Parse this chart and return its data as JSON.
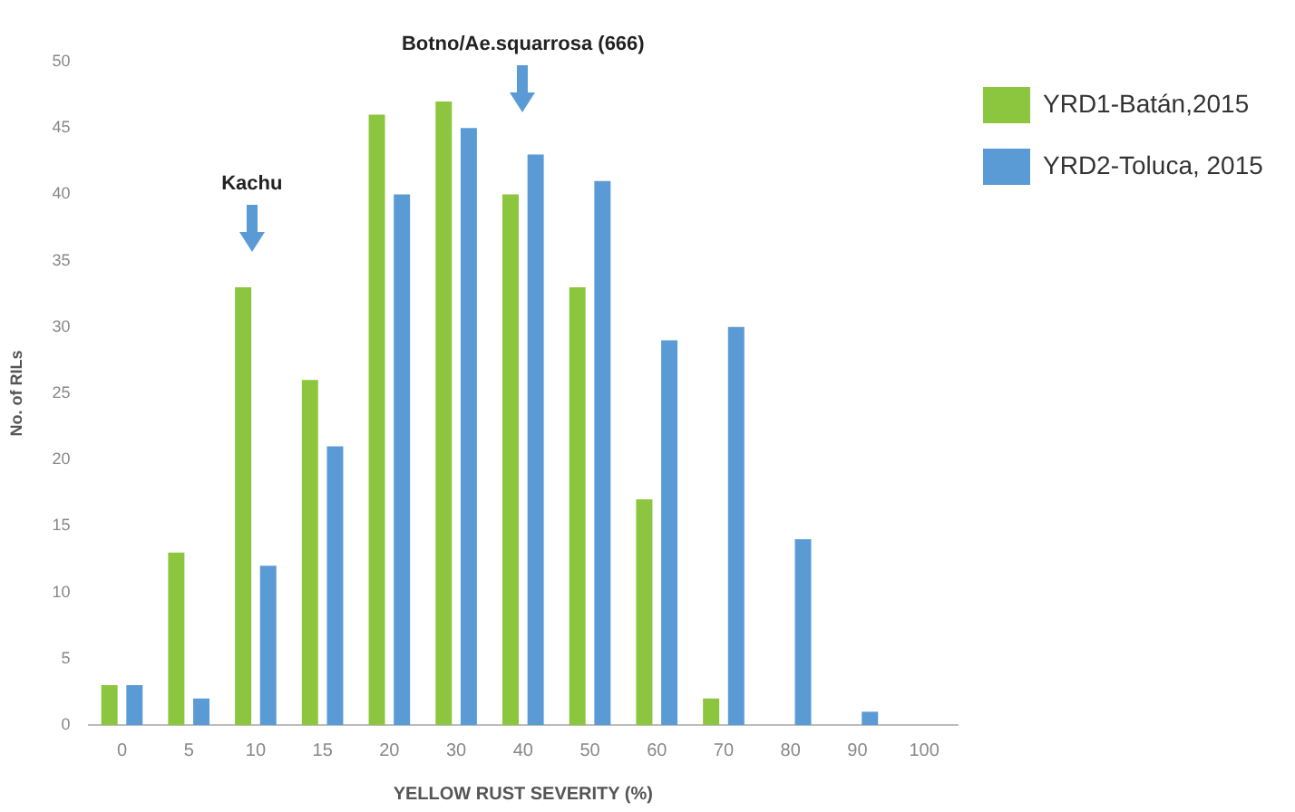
{
  "chart_data": {
    "type": "bar",
    "xlabel": "YELLOW RUST SEVERITY (%)",
    "ylabel": "No. of RILs",
    "categories": [
      "0",
      "5",
      "10",
      "15",
      "20",
      "30",
      "40",
      "50",
      "60",
      "70",
      "80",
      "90",
      "100"
    ],
    "series": [
      {
        "name": "YRD1-Batán,2015",
        "color": "#8cc63f",
        "values": [
          3,
          13,
          33,
          26,
          46,
          47,
          40,
          33,
          17,
          2,
          0,
          0,
          0
        ]
      },
      {
        "name": "YRD2-Toluca, 2015",
        "color": "#5b9bd5",
        "values": [
          3,
          2,
          12,
          21,
          40,
          45,
          43,
          41,
          29,
          30,
          14,
          1,
          0
        ]
      }
    ],
    "ylim": [
      0,
      50
    ],
    "yticks": [
      0,
      5,
      10,
      15,
      20,
      25,
      30,
      35,
      40,
      45,
      50
    ],
    "grid": false,
    "legend": "right",
    "annotations": [
      "Kachu",
      "Botno/Ae.squarrosa (666)"
    ]
  }
}
